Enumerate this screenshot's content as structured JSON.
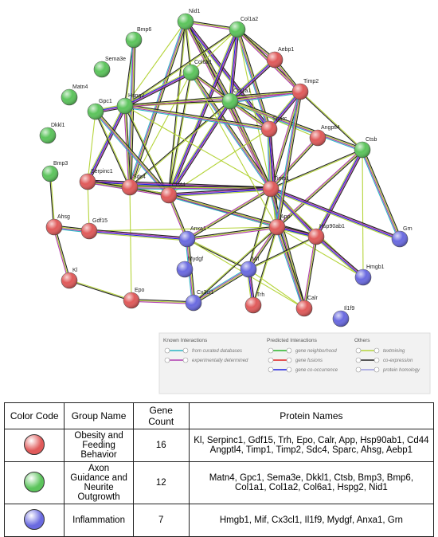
{
  "network": {
    "nodes": [
      {
        "label": "Nid1",
        "color": "#5cc45c"
      },
      {
        "label": "Col1a2",
        "color": "#5cc45c"
      },
      {
        "label": "Bmp6",
        "color": "#5cc45c"
      },
      {
        "label": "Sema3e",
        "color": "#5cc45c"
      },
      {
        "label": "Aebp1",
        "color": "#e05a5a"
      },
      {
        "label": "Col6a1",
        "color": "#5cc45c"
      },
      {
        "label": "Matn4",
        "color": "#5cc45c"
      },
      {
        "label": "Hspg2",
        "color": "#5cc45c"
      },
      {
        "label": "Col1a1",
        "color": "#5cc45c"
      },
      {
        "label": "Timp2",
        "color": "#e05a5a"
      },
      {
        "label": "Gpc1",
        "color": "#5cc45c"
      },
      {
        "label": "Dkkl1",
        "color": "#5cc45c"
      },
      {
        "label": "Sparc",
        "color": "#e05a5a"
      },
      {
        "label": "Angptl4",
        "color": "#e05a5a"
      },
      {
        "label": "Ctsb",
        "color": "#5cc45c"
      },
      {
        "label": "Bmp3",
        "color": "#5cc45c"
      },
      {
        "label": "Serpinc1",
        "color": "#e05a5a"
      },
      {
        "label": "Sdc4",
        "color": "#e05a5a"
      },
      {
        "label": "Cd44",
        "color": "#e05a5a"
      },
      {
        "label": "Timp1",
        "color": "#e05a5a"
      },
      {
        "label": "Ahsg",
        "color": "#e05a5a"
      },
      {
        "label": "Gdf15",
        "color": "#e05a5a"
      },
      {
        "label": "Anxa1",
        "color": "#6a6ae0"
      },
      {
        "label": "App",
        "color": "#e05a5a"
      },
      {
        "label": "Hsp90ab1",
        "color": "#e05a5a"
      },
      {
        "label": "Grn",
        "color": "#6a6ae0"
      },
      {
        "label": "Mydgf",
        "color": "#6a6ae0"
      },
      {
        "label": "Mif",
        "color": "#6a6ae0"
      },
      {
        "label": "Hmgb1",
        "color": "#6a6ae0"
      },
      {
        "label": "Kl",
        "color": "#e05a5a"
      },
      {
        "label": "Epo",
        "color": "#e05a5a"
      },
      {
        "label": "Cx3cl1",
        "color": "#6a6ae0"
      },
      {
        "label": "Trh",
        "color": "#e05a5a"
      },
      {
        "label": "Calr",
        "color": "#e05a5a"
      },
      {
        "label": "Il1f9",
        "color": "#6a6ae0"
      }
    ]
  },
  "legend": {
    "groups": [
      {
        "title": "Known Interactions",
        "items": [
          {
            "label": "from curated databases",
            "color": "#2bb5c4"
          },
          {
            "label": "experimentally determined",
            "color": "#b03ab0"
          }
        ]
      },
      {
        "title": "Predicted Interactions",
        "items": [
          {
            "label": "gene neighborhood",
            "color": "#2ab52a"
          },
          {
            "label": "gene fusions",
            "color": "#e02020"
          },
          {
            "label": "gene co-occurrence",
            "color": "#2020e0"
          }
        ]
      },
      {
        "title": "Others",
        "items": [
          {
            "label": "textmining",
            "color": "#b5d43a"
          },
          {
            "label": "co-expression",
            "color": "#222222"
          },
          {
            "label": "protein homology",
            "color": "#9a9ae0"
          }
        ]
      }
    ]
  },
  "table": {
    "header": [
      "Color Code",
      "Group Name",
      "Gene Count",
      "Protein Names"
    ],
    "rows": [
      {
        "color": "#e05a5a",
        "group": "Obesity and Feeding Behavior",
        "count": "16",
        "proteins": "Kl, Serpinc1, Gdf15, Trh, Epo, Calr, App, Hsp90ab1, Cd44 Angptl4, Timp1, Timp2, Sdc4, Sparc, Ahsg, Aebp1"
      },
      {
        "color": "#5cc45c",
        "group": "Axon Guidance and Neurite Outgrowth",
        "count": "12",
        "proteins": "Matn4, Gpc1, Sema3e, Dkkl1, Ctsb, Bmp3, Bmp6, Col1a1, Col1a2, Col6a1, Hspg2, Nid1"
      },
      {
        "color": "#6a6ae0",
        "group": "Inflammation",
        "count": "7",
        "proteins": "Hmgb1, Mif, Cx3cl1, Il1f9, Mydgf, Anxa1, Grn"
      }
    ]
  }
}
